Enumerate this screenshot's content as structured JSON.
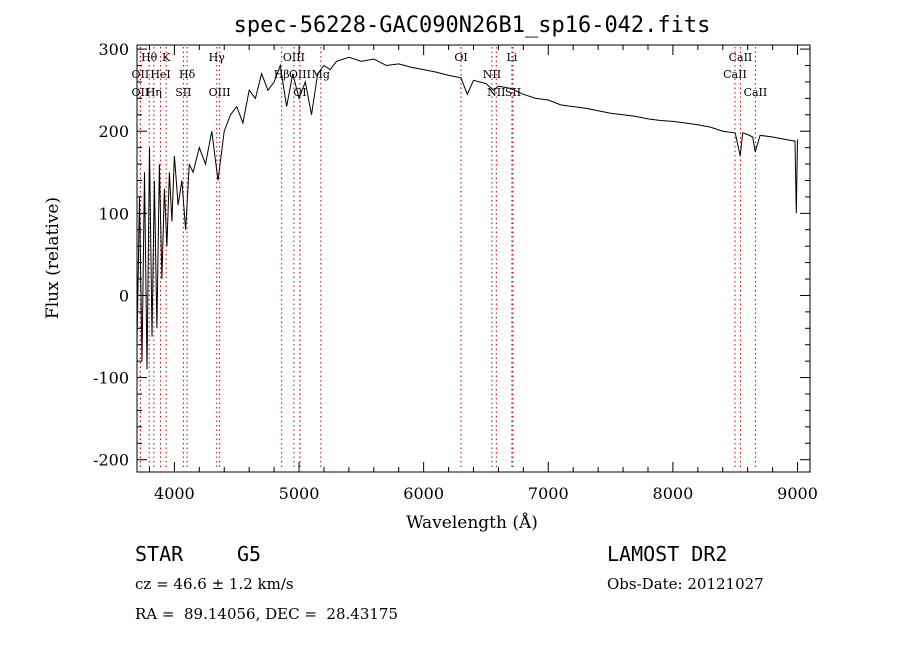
{
  "chart_data": {
    "type": "line",
    "title": "spec-56228-GAC090N26B1_sp16-042.fits",
    "xlabel": "Wavelength (Å)",
    "ylabel": "Flux (relative)",
    "xlim": [
      3700,
      9100
    ],
    "ylim": [
      -215,
      305
    ],
    "xticks": [
      4000,
      5000,
      6000,
      7000,
      8000,
      9000
    ],
    "yticks": [
      -200,
      -100,
      0,
      100,
      200,
      300
    ],
    "grid": false,
    "line_color": "#000000",
    "marker_color": "#cc0000",
    "series": [
      {
        "x": [
          3700,
          3720,
          3740,
          3760,
          3780,
          3800,
          3820,
          3840,
          3860,
          3880,
          3900,
          3920,
          3940,
          3960,
          3980,
          4000,
          4030,
          4060,
          4090,
          4120,
          4150,
          4200,
          4250,
          4300,
          4350,
          4400,
          4450,
          4500,
          4550,
          4600,
          4650,
          4700,
          4750,
          4800,
          4850,
          4900,
          4950,
          5000,
          5050,
          5100,
          5150,
          5200,
          5250,
          5300,
          5400,
          5500,
          5600,
          5700,
          5800,
          5900,
          6000,
          6100,
          6200,
          6300,
          6350,
          6400,
          6500,
          6560,
          6600,
          6700,
          6800,
          6900,
          7000,
          7100,
          7200,
          7300,
          7400,
          7500,
          7600,
          7700,
          7800,
          7900,
          8000,
          8100,
          8200,
          8300,
          8400,
          8500,
          8540,
          8560,
          8600,
          8640,
          8660,
          8700,
          8800,
          8900,
          8980,
          8990,
          9000
        ],
        "y": [
          -60,
          120,
          -80,
          150,
          -90,
          180,
          -50,
          140,
          -40,
          160,
          20,
          130,
          60,
          150,
          90,
          170,
          110,
          140,
          80,
          160,
          150,
          180,
          160,
          200,
          140,
          200,
          220,
          230,
          210,
          250,
          240,
          270,
          250,
          260,
          280,
          230,
          270,
          240,
          260,
          220,
          270,
          280,
          275,
          285,
          290,
          285,
          288,
          280,
          282,
          278,
          275,
          272,
          268,
          265,
          245,
          262,
          258,
          250,
          255,
          252,
          245,
          240,
          238,
          232,
          230,
          228,
          225,
          222,
          220,
          218,
          215,
          213,
          212,
          210,
          208,
          205,
          200,
          198,
          170,
          198,
          196,
          193,
          175,
          195,
          193,
          190,
          188,
          100,
          190
        ]
      }
    ],
    "line_markers": [
      {
        "label": "Hθ",
        "wl": 3798,
        "row": 0
      },
      {
        "label": "K",
        "wl": 3934,
        "row": 0
      },
      {
        "label": "OII",
        "wl": 3727,
        "row": 1
      },
      {
        "label": "HeI",
        "wl": 3889,
        "row": 1
      },
      {
        "label": "Hδ",
        "wl": 4102,
        "row": 1
      },
      {
        "label": "OII",
        "wl": 3727,
        "row": 2
      },
      {
        "label": "Hη",
        "wl": 3835,
        "row": 2
      },
      {
        "label": "SII",
        "wl": 4072,
        "row": 2
      },
      {
        "label": "Hγ",
        "wl": 4340,
        "row": 0
      },
      {
        "label": "OIII",
        "wl": 4363,
        "row": 2
      },
      {
        "label": "OIII",
        "wl": 4959,
        "row": 0
      },
      {
        "label": "Hβ",
        "wl": 4861,
        "row": 1
      },
      {
        "label": "OIII",
        "wl": 5007,
        "row": 1
      },
      {
        "label": "Mg",
        "wl": 5175,
        "row": 1
      },
      {
        "label": "OI",
        "wl": 5007,
        "row": 2
      },
      {
        "label": "OI",
        "wl": 6300,
        "row": 0
      },
      {
        "label": "NII",
        "wl": 6548,
        "row": 1
      },
      {
        "label": "NII",
        "wl": 6583,
        "row": 2
      },
      {
        "label": "SII",
        "wl": 6717,
        "row": 2
      },
      {
        "label": "Li",
        "wl": 6708,
        "row": 0
      },
      {
        "label": "CaII",
        "wl": 8542,
        "row": 0
      },
      {
        "label": "CaII",
        "wl": 8498,
        "row": 1
      },
      {
        "label": "CaII",
        "wl": 8662,
        "row": 2
      }
    ]
  },
  "info": {
    "class": "STAR",
    "subclass": "G5",
    "survey": "LAMOST DR2",
    "cz": "cz = 46.6 ± 1.2 km/s",
    "obsdate": "Obs-Date: 20121027",
    "radec": "RA =  89.14056, DEC =  28.43175"
  }
}
